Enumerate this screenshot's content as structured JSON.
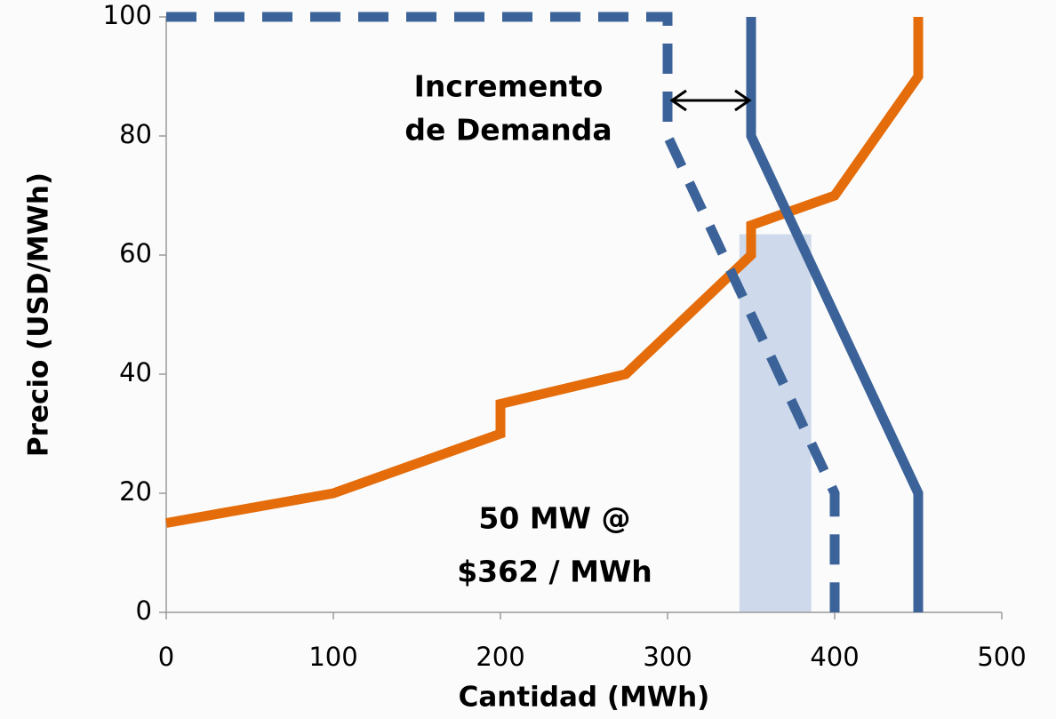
{
  "chart_data": {
    "type": "line",
    "xlabel": "Cantidad (MWh)",
    "ylabel": "Precio (USD/MWh)",
    "xlim": [
      0,
      500
    ],
    "xticks": [
      0,
      100,
      200,
      300,
      400,
      500
    ],
    "ylim": [
      0,
      100
    ],
    "yticks": [
      0,
      20,
      40,
      60,
      80,
      100
    ],
    "grid": false,
    "series": [
      {
        "color": "#e46c0a",
        "dashed": false,
        "x": [
          0,
          100,
          200,
          200,
          275,
          350,
          350,
          400,
          450,
          450
        ],
        "values": [
          15,
          20,
          30,
          35,
          40,
          60,
          65,
          70,
          90,
          100
        ]
      },
      {
        "color": "#3c6399",
        "dashed": false,
        "x": [
          350,
          350,
          450,
          450
        ],
        "values": [
          100,
          80,
          20,
          0
        ]
      },
      {
        "color": "#3c6399",
        "dashed": true,
        "x": [
          0,
          300,
          300,
          400,
          400
        ],
        "values": [
          100,
          100,
          80,
          20,
          0
        ]
      }
    ],
    "highlight": {
      "x": [
        343,
        386
      ],
      "y": [
        0,
        63.5
      ],
      "color": "#c5d3e8"
    },
    "annotations": [
      "Incremento",
      "de Demanda",
      "50 MW @",
      "$362 / MWh"
    ]
  }
}
